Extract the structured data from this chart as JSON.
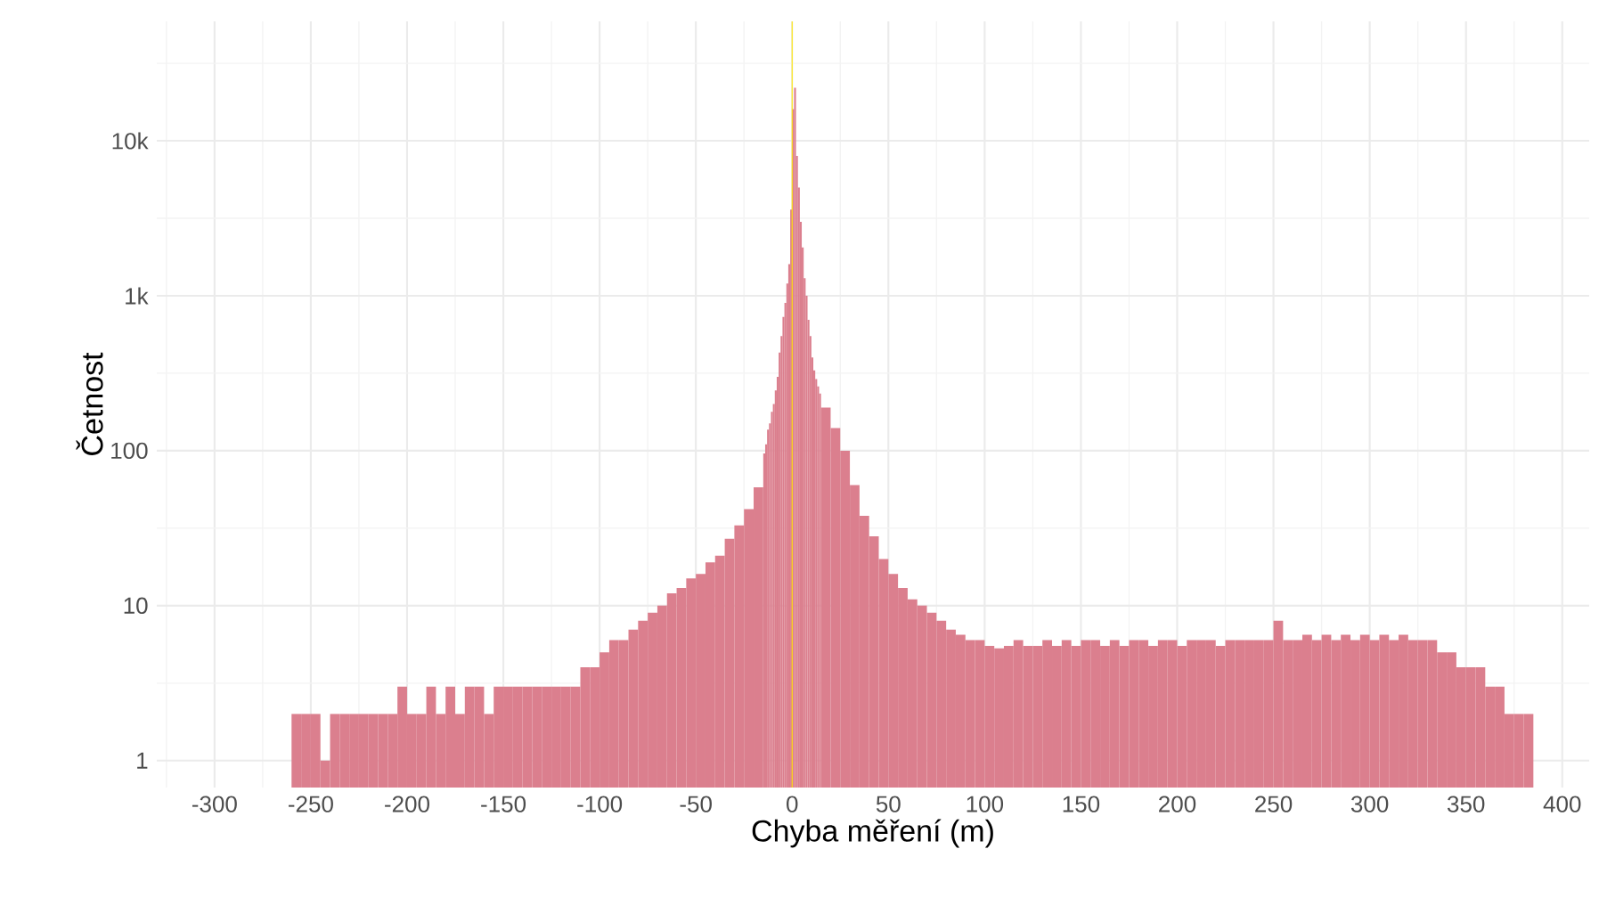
{
  "chart_data": {
    "type": "histogram",
    "xlabel": "Chyba měření (m)",
    "ylabel": "Četnost",
    "color": "#db7f8e",
    "log": "y",
    "grid": true,
    "bins": [
      -260,
      -255,
      -250,
      -245,
      -240,
      -235,
      -230,
      -225,
      -220,
      -215,
      -210,
      -205,
      -200,
      -195,
      -190,
      -185,
      -180,
      -175,
      -170,
      -165,
      -160,
      -155,
      -150,
      -145,
      -140,
      -135,
      -130,
      -125,
      -120,
      -115,
      -110,
      -105,
      -100,
      -95,
      -90,
      -85,
      -80,
      -75,
      -70,
      -65,
      -60,
      -55,
      -50,
      -45,
      -40,
      -35,
      -30,
      -25,
      -20,
      -15,
      -14,
      -13,
      -12,
      -11,
      -10,
      -9,
      -8,
      -7,
      -6,
      -5,
      -4,
      -3,
      -2,
      -1,
      0,
      1,
      2,
      3,
      4,
      5,
      6,
      7,
      8,
      9,
      10,
      11,
      12,
      13,
      14,
      15,
      20,
      25,
      30,
      35,
      40,
      45,
      50,
      55,
      60,
      65,
      70,
      75,
      80,
      85,
      90,
      95,
      100,
      105,
      110,
      115,
      120,
      125,
      130,
      135,
      140,
      145,
      150,
      155,
      160,
      165,
      170,
      175,
      180,
      185,
      190,
      195,
      200,
      205,
      210,
      215,
      220,
      225,
      230,
      235,
      240,
      245,
      250,
      255,
      260,
      265,
      270,
      275,
      280,
      285,
      290,
      295,
      300,
      305,
      310,
      315,
      320,
      325,
      330,
      335,
      340,
      345,
      350,
      355,
      360,
      365,
      370,
      375,
      380,
      385
    ],
    "values": [
      2,
      2,
      2,
      1,
      2,
      2,
      2,
      2,
      2,
      2,
      2,
      3,
      2,
      2,
      3,
      2,
      3,
      2,
      3,
      3,
      2,
      3,
      3,
      3,
      3,
      3,
      3,
      3,
      3,
      3,
      4,
      4,
      5,
      6,
      6,
      7,
      8,
      9,
      10,
      12,
      13,
      15,
      16,
      19,
      21,
      27,
      33,
      42,
      58,
      96,
      110,
      137,
      150,
      178,
      200,
      245,
      300,
      430,
      550,
      730,
      900,
      1200,
      1600,
      3600,
      16000,
      22000,
      8000,
      5000,
      3000,
      2050,
      1300,
      1000,
      700,
      550,
      400,
      330,
      290,
      260,
      234,
      190,
      140,
      100,
      60,
      38,
      28,
      20,
      16,
      13,
      11,
      10,
      9,
      8,
      7,
      6.5,
      6,
      6,
      5.5,
      5.3,
      5.5,
      6,
      5.5,
      5.5,
      6,
      5.5,
      6,
      5.5,
      6,
      6,
      5.5,
      6,
      5.5,
      6,
      6,
      5.5,
      6,
      6,
      5.5,
      6,
      6,
      6,
      5.5,
      6,
      6,
      6,
      6,
      6,
      8,
      6,
      6,
      6.5,
      6,
      6.5,
      6,
      6.5,
      6,
      6.5,
      6,
      6.5,
      6,
      6.5,
      6,
      6,
      6,
      5,
      5,
      4,
      4,
      4,
      3,
      3,
      2,
      2,
      2
    ],
    "xlim": [
      -330,
      414
    ],
    "ylim": [
      0.67,
      59000
    ],
    "xticks": [
      -300,
      -250,
      -200,
      -150,
      -100,
      -50,
      0,
      50,
      100,
      150,
      200,
      250,
      300,
      350,
      400
    ],
    "yticks": [
      {
        "value": 1,
        "label": "1"
      },
      {
        "value": 10,
        "label": "10"
      },
      {
        "value": 100,
        "label": "100"
      },
      {
        "value": 1000,
        "label": "1k"
      },
      {
        "value": 10000,
        "label": "10k"
      }
    ],
    "ref_lines": [
      {
        "axis": "x",
        "value": 0,
        "color": "#ffe600"
      }
    ]
  }
}
